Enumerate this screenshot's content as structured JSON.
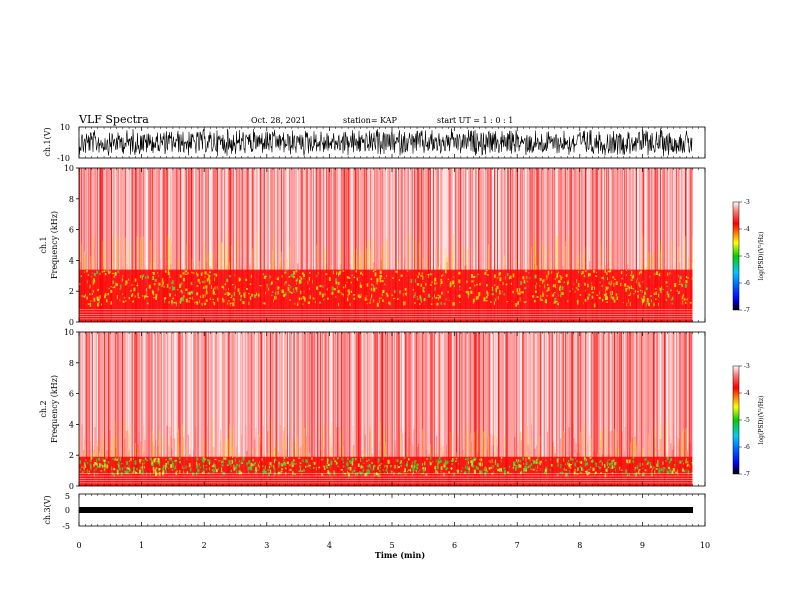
{
  "header": {
    "title": "VLF Spectra",
    "date": "Oct. 28, 2021",
    "station": "station= KAP",
    "start": "start  UT =   1 : 0  : 1"
  },
  "chart_data": [
    {
      "type": "line",
      "panel": "ch1-waveform",
      "ylabel": "ch.1(V)",
      "ylim": [
        -10,
        10
      ],
      "yticks": [
        "10",
        "-10"
      ],
      "xlim": [
        0,
        10
      ],
      "description_values": {
        "x_end_min": 9.8
      }
    },
    {
      "type": "heatmap",
      "panel": "ch1-spectrogram",
      "ylabel": "ch.1\nFrequency (kHz)",
      "ylabel_line1": "ch.1",
      "ylabel_line2": "Frequency (kHz)",
      "ylim": [
        0,
        10
      ],
      "yticks": [
        "0",
        "2",
        "4",
        "6",
        "8",
        "10"
      ],
      "xlim": [
        0,
        10
      ],
      "color_scale": {
        "min": -7,
        "max": -3,
        "ticks": [
          "-3",
          "-4",
          "-5",
          "-6",
          "-7"
        ],
        "label": "log(PSD)(V²/Hz)"
      },
      "bands_khz": [
        [
          1.2,
          3.4
        ]
      ]
    },
    {
      "type": "heatmap",
      "panel": "ch2-spectrogram",
      "ylabel_line1": "ch.2",
      "ylabel_line2": "Frequency (kHz)",
      "ylim": [
        0,
        10
      ],
      "yticks": [
        "0",
        "2",
        "4",
        "6",
        "8",
        "10"
      ],
      "xlim": [
        0,
        10
      ],
      "color_scale": {
        "min": -7,
        "max": -3,
        "ticks": [
          "-3",
          "-4",
          "-5",
          "-6",
          "-7"
        ],
        "label": "log(PSD)(V²/Hz)"
      },
      "bands_khz": [
        [
          0.8,
          1.9
        ]
      ]
    },
    {
      "type": "line",
      "panel": "ch3-waveform",
      "ylabel": "ch.3(V)",
      "ylim": [
        -5,
        5
      ],
      "yticks": [
        "5",
        "0",
        "-5"
      ],
      "xlim": [
        0,
        10
      ],
      "xticks": [
        "0",
        "1",
        "2",
        "3",
        "4",
        "5",
        "6",
        "7",
        "8",
        "9",
        "10"
      ],
      "xlabel": "Time (min)"
    }
  ],
  "colors": {
    "low": "#000080",
    "mid_low": "#00c000",
    "mid": "#f0f000",
    "high": "#ff0000",
    "max": "#ffffff"
  }
}
